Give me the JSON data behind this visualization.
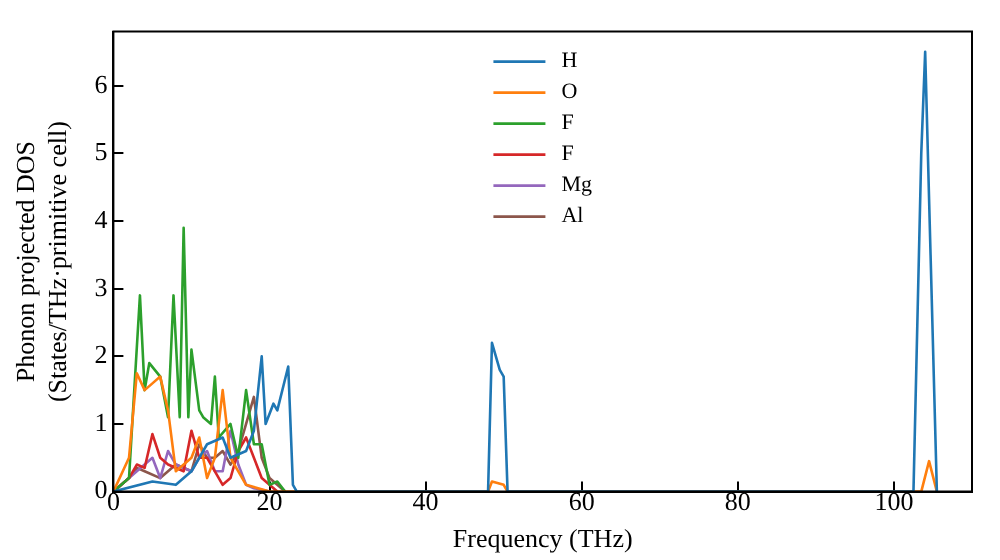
{
  "chart_data": {
    "type": "line",
    "xlabel": "Frequency (THz)",
    "ylabel": "Phonon projected DOS\n(States/THz·primitive cell)",
    "xlim": [
      0,
      110
    ],
    "ylim": [
      0,
      6.8
    ],
    "xticks": [
      0,
      20,
      40,
      60,
      80,
      100
    ],
    "yticks": [
      0,
      1,
      2,
      3,
      4,
      5,
      6
    ],
    "grid": false,
    "legend": "top",
    "marker": "none",
    "line_style": "solid",
    "series": [
      {
        "name": "H",
        "color": "#1f77b4",
        "x": [
          0,
          5,
          8,
          10,
          12,
          14,
          15,
          17,
          18,
          19,
          19.5,
          20.5,
          21,
          22.4,
          23,
          23.5,
          48,
          48.5,
          49.5,
          50,
          50.5,
          102.5,
          103.5,
          104,
          105.5
        ],
        "values": [
          0,
          0.15,
          0.1,
          0.3,
          0.7,
          0.8,
          0.5,
          0.6,
          0.9,
          2.0,
          1.0,
          1.3,
          1.2,
          1.85,
          0.1,
          0,
          0,
          2.2,
          1.8,
          1.7,
          0,
          0,
          5.0,
          6.5,
          0
        ]
      },
      {
        "name": "O",
        "color": "#ff7f0e",
        "x": [
          0,
          2,
          3,
          4,
          5,
          6,
          7,
          8,
          10,
          11,
          12,
          13,
          14,
          15,
          16,
          17,
          20,
          48,
          48.5,
          50,
          50.5,
          103.5,
          104.5,
          105.5
        ],
        "values": [
          0,
          0.5,
          1.75,
          1.5,
          1.6,
          1.7,
          1.2,
          0.3,
          0.5,
          0.8,
          0.2,
          0.5,
          1.5,
          0.5,
          0.3,
          0.1,
          0,
          0,
          0.15,
          0.1,
          0,
          0,
          0.45,
          0
        ]
      },
      {
        "name": "F",
        "color": "#2ca02c",
        "x": [
          0,
          2,
          3.4,
          4,
          4.6,
          6,
          7,
          7.7,
          8.5,
          9,
          9.6,
          10,
          11,
          11.5,
          12.5,
          13,
          13.5,
          15,
          16,
          17,
          18,
          19,
          20,
          21,
          22
        ],
        "values": [
          0,
          0.2,
          2.9,
          1.5,
          1.9,
          1.7,
          1.1,
          2.9,
          1.1,
          3.9,
          1.1,
          2.1,
          1.2,
          1.1,
          1.0,
          1.7,
          0.8,
          1.0,
          0.5,
          1.5,
          0.7,
          0.7,
          0.1,
          0.15,
          0
        ]
      },
      {
        "name": "F",
        "color": "#d62728",
        "x": [
          0,
          2,
          3,
          4,
          5,
          6,
          7,
          9,
          10,
          11,
          12,
          13,
          14,
          15,
          16,
          17,
          18,
          19,
          20,
          21
        ],
        "values": [
          0,
          0.2,
          0.4,
          0.35,
          0.85,
          0.5,
          0.4,
          0.3,
          0.9,
          0.5,
          0.5,
          0.3,
          0.1,
          0.2,
          0.6,
          0.8,
          0.5,
          0.2,
          0.1,
          0
        ]
      },
      {
        "name": "Mg",
        "color": "#9467bd",
        "x": [
          0,
          3,
          4,
          5,
          6,
          7,
          8,
          10,
          11,
          12,
          13,
          14,
          15,
          16,
          17,
          18,
          20
        ],
        "values": [
          0,
          0.3,
          0.4,
          0.5,
          0.2,
          0.6,
          0.4,
          0.3,
          0.5,
          0.6,
          0.3,
          0.3,
          0.9,
          0.4,
          0.1,
          0.05,
          0
        ]
      },
      {
        "name": "Al",
        "color": "#8c564b",
        "x": [
          0,
          2,
          3,
          4,
          6,
          8,
          10,
          11,
          12,
          13,
          14,
          15,
          16,
          17,
          18,
          19,
          20,
          21,
          22
        ],
        "values": [
          0,
          0.2,
          0.35,
          0.3,
          0.2,
          0.4,
          0.3,
          0.7,
          0.5,
          0.5,
          0.6,
          0.4,
          0.6,
          1.0,
          1.4,
          0.5,
          0.2,
          0.1,
          0
        ]
      }
    ]
  }
}
